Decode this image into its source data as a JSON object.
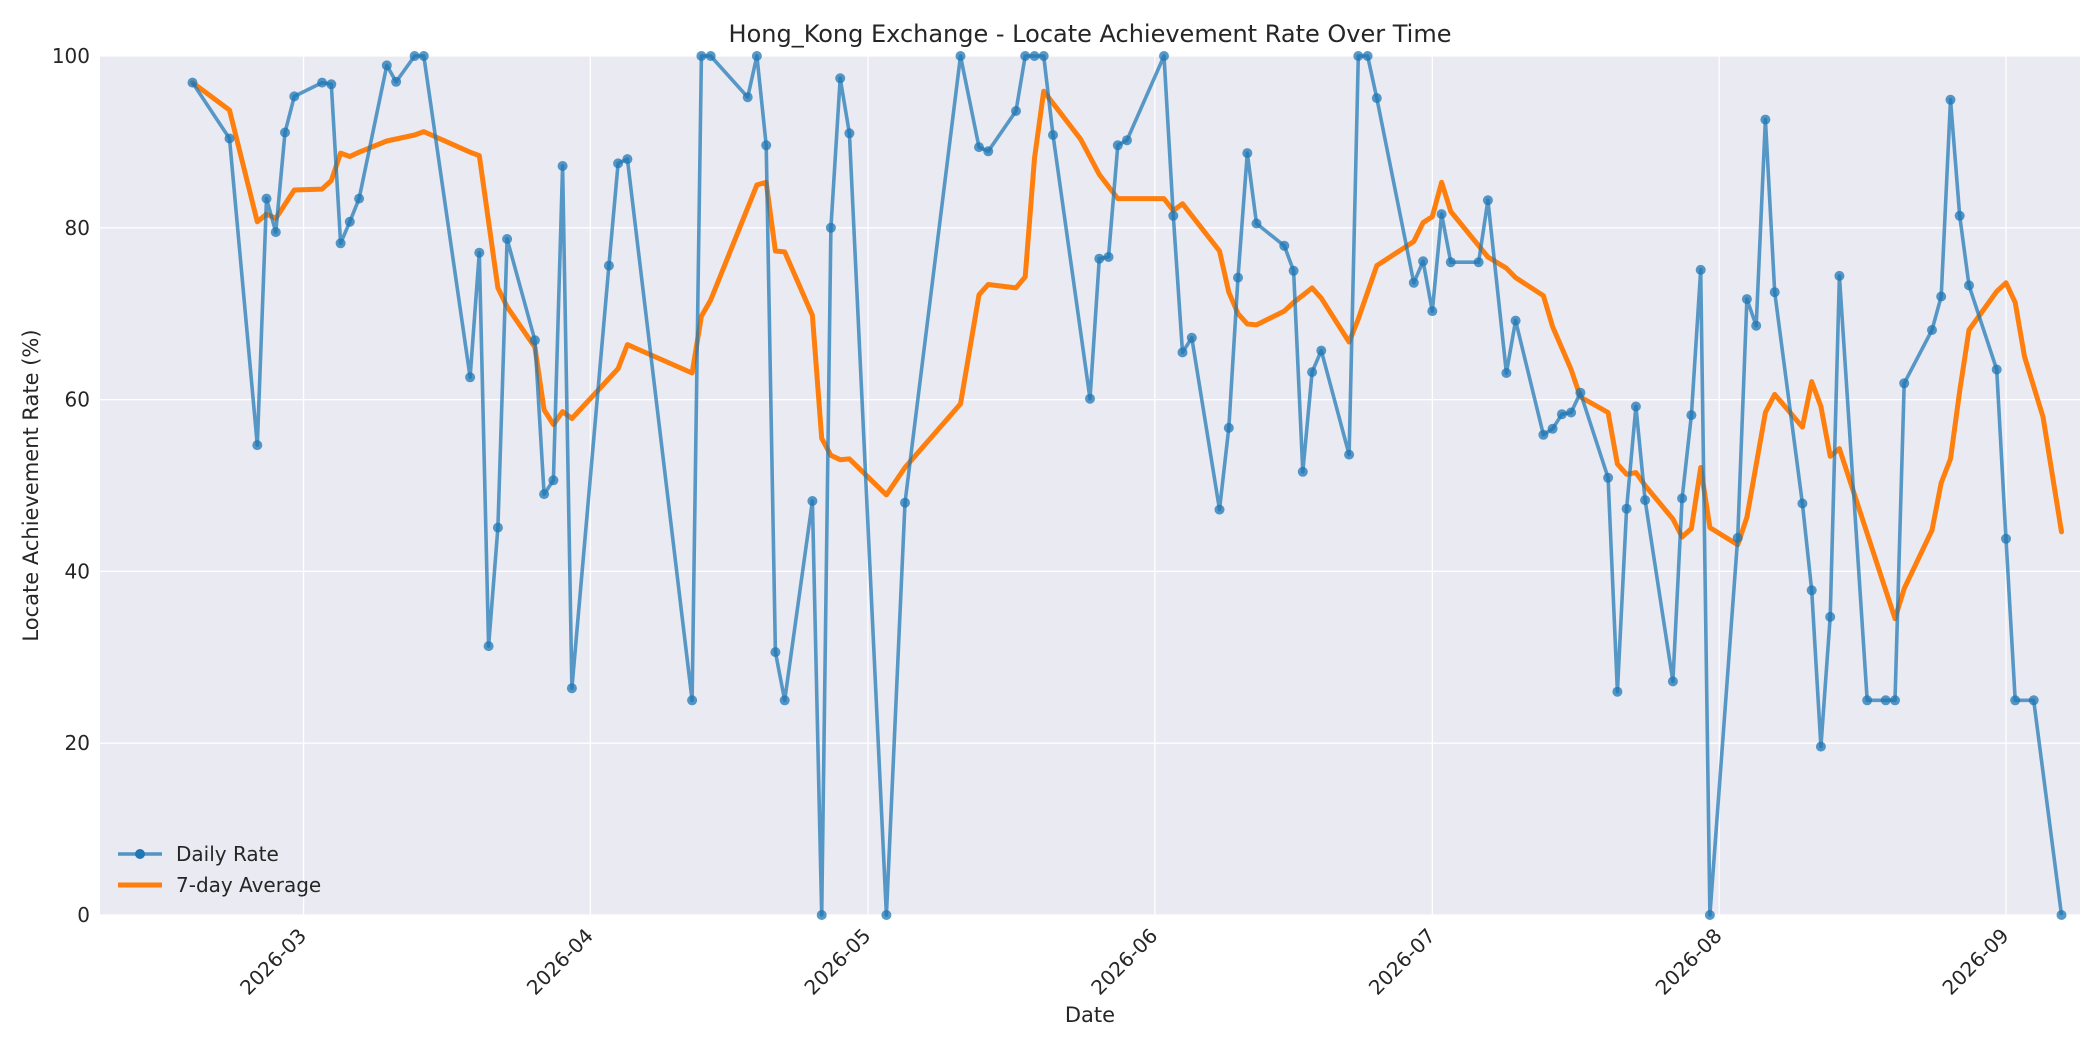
{
  "chart_data": {
    "type": "line",
    "title": "Hong_Kong Exchange - Locate Achievement Rate Over Time",
    "xlabel": "Date",
    "ylabel": "Locate Achievement Rate (%)",
    "ylim": [
      0,
      100
    ],
    "xlim": [
      "2026-02-07",
      "2026-09-09"
    ],
    "x_ticks": [
      "2026-03",
      "2026-04",
      "2026-05",
      "2026-06",
      "2026-07",
      "2026-08",
      "2026-09"
    ],
    "y_ticks": [
      0,
      20,
      40,
      60,
      80,
      100
    ],
    "grid": true,
    "legend_position": "lower-left",
    "colors": {
      "daily": "#1f77b4",
      "avg": "#ff7f0e",
      "plot_bg": "#eaeaf2",
      "grid": "#ffffff"
    },
    "series": [
      {
        "name": "Daily Rate",
        "marker": "circle",
        "points": [
          [
            "2026-02-17",
            96.9
          ],
          [
            "2026-02-21",
            90.4
          ],
          [
            "2026-02-24",
            54.7
          ],
          [
            "2026-02-25",
            83.4
          ],
          [
            "2026-02-26",
            79.5
          ],
          [
            "2026-02-27",
            91.1
          ],
          [
            "2026-02-28",
            95.3
          ],
          [
            "2026-03-03",
            96.9
          ],
          [
            "2026-03-04",
            96.7
          ],
          [
            "2026-03-05",
            78.2
          ],
          [
            "2026-03-06",
            80.7
          ],
          [
            "2026-03-07",
            83.4
          ],
          [
            "2026-03-10",
            98.9
          ],
          [
            "2026-03-11",
            97.0
          ],
          [
            "2026-03-13",
            100.0
          ],
          [
            "2026-03-14",
            100.0
          ],
          [
            "2026-03-19",
            62.6
          ],
          [
            "2026-03-20",
            77.1
          ],
          [
            "2026-03-21",
            31.3
          ],
          [
            "2026-03-22",
            45.1
          ],
          [
            "2026-03-23",
            78.7
          ],
          [
            "2026-03-26",
            66.9
          ],
          [
            "2026-03-27",
            49.0
          ],
          [
            "2026-03-28",
            50.6
          ],
          [
            "2026-03-29",
            87.2
          ],
          [
            "2026-03-30",
            26.4
          ],
          [
            "2026-04-03",
            75.6
          ],
          [
            "2026-04-04",
            87.5
          ],
          [
            "2026-04-05",
            88.0
          ],
          [
            "2026-04-12",
            25.0
          ],
          [
            "2026-04-13",
            100.0
          ],
          [
            "2026-04-14",
            100.0
          ],
          [
            "2026-04-18",
            95.2
          ],
          [
            "2026-04-19",
            100.0
          ],
          [
            "2026-04-20",
            89.6
          ],
          [
            "2026-04-21",
            30.6
          ],
          [
            "2026-04-22",
            25.0
          ],
          [
            "2026-04-25",
            48.2
          ],
          [
            "2026-04-26",
            0.0
          ],
          [
            "2026-04-27",
            80.0
          ],
          [
            "2026-04-28",
            97.4
          ],
          [
            "2026-04-29",
            91.0
          ],
          [
            "2026-05-03",
            0.0
          ],
          [
            "2026-05-05",
            48.0
          ],
          [
            "2026-05-11",
            100.0
          ],
          [
            "2026-05-13",
            89.4
          ],
          [
            "2026-05-14",
            88.9
          ],
          [
            "2026-05-17",
            93.6
          ],
          [
            "2026-05-18",
            100.0
          ],
          [
            "2026-05-19",
            100.0
          ],
          [
            "2026-05-20",
            100.0
          ],
          [
            "2026-05-21",
            90.8
          ],
          [
            "2026-05-25",
            60.1
          ],
          [
            "2026-05-26",
            76.4
          ],
          [
            "2026-05-27",
            76.6
          ],
          [
            "2026-05-28",
            89.6
          ],
          [
            "2026-05-29",
            90.2
          ],
          [
            "2026-06-02",
            100.0
          ],
          [
            "2026-06-03",
            81.4
          ],
          [
            "2026-06-04",
            65.5
          ],
          [
            "2026-06-05",
            67.2
          ],
          [
            "2026-06-08",
            47.2
          ],
          [
            "2026-06-09",
            56.7
          ],
          [
            "2026-06-10",
            74.2
          ],
          [
            "2026-06-11",
            88.7
          ],
          [
            "2026-06-12",
            80.5
          ],
          [
            "2026-06-15",
            77.9
          ],
          [
            "2026-06-16",
            75.0
          ],
          [
            "2026-06-17",
            51.6
          ],
          [
            "2026-06-18",
            63.2
          ],
          [
            "2026-06-19",
            65.7
          ],
          [
            "2026-06-22",
            53.6
          ],
          [
            "2026-06-23",
            100.0
          ],
          [
            "2026-06-24",
            100.0
          ],
          [
            "2026-06-25",
            95.1
          ],
          [
            "2026-06-29",
            73.6
          ],
          [
            "2026-06-30",
            76.1
          ],
          [
            "2026-07-01",
            70.3
          ],
          [
            "2026-07-02",
            81.6
          ],
          [
            "2026-07-03",
            76.0
          ],
          [
            "2026-07-06",
            76.0
          ],
          [
            "2026-07-07",
            83.2
          ],
          [
            "2026-07-09",
            63.1
          ],
          [
            "2026-07-10",
            69.2
          ],
          [
            "2026-07-13",
            55.9
          ],
          [
            "2026-07-14",
            56.6
          ],
          [
            "2026-07-15",
            58.3
          ],
          [
            "2026-07-16",
            58.5
          ],
          [
            "2026-07-17",
            60.8
          ],
          [
            "2026-07-20",
            50.9
          ],
          [
            "2026-07-21",
            26.0
          ],
          [
            "2026-07-22",
            47.3
          ],
          [
            "2026-07-23",
            59.2
          ],
          [
            "2026-07-24",
            48.3
          ],
          [
            "2026-07-27",
            27.2
          ],
          [
            "2026-07-28",
            48.5
          ],
          [
            "2026-07-29",
            58.2
          ],
          [
            "2026-07-30",
            75.1
          ],
          [
            "2026-07-31",
            0.0
          ],
          [
            "2026-08-03",
            43.9
          ],
          [
            "2026-08-04",
            71.7
          ],
          [
            "2026-08-05",
            68.6
          ],
          [
            "2026-08-06",
            92.6
          ],
          [
            "2026-08-07",
            72.5
          ],
          [
            "2026-08-10",
            47.9
          ],
          [
            "2026-08-11",
            37.8
          ],
          [
            "2026-08-12",
            19.6
          ],
          [
            "2026-08-13",
            34.7
          ],
          [
            "2026-08-14",
            74.4
          ],
          [
            "2026-08-17",
            25.0
          ],
          [
            "2026-08-19",
            25.0
          ],
          [
            "2026-08-20",
            25.0
          ],
          [
            "2026-08-21",
            61.9
          ],
          [
            "2026-08-24",
            68.1
          ],
          [
            "2026-08-25",
            72.0
          ],
          [
            "2026-08-26",
            94.9
          ],
          [
            "2026-08-27",
            81.4
          ],
          [
            "2026-08-28",
            73.3
          ],
          [
            "2026-08-31",
            63.5
          ],
          [
            "2026-09-01",
            43.8
          ],
          [
            "2026-09-02",
            25.0
          ],
          [
            "2026-09-04",
            25.0
          ],
          [
            "2026-09-07",
            0.0
          ]
        ]
      },
      {
        "name": "7-day Average",
        "marker": "none",
        "points": [
          [
            "2026-02-17",
            96.9
          ],
          [
            "2026-02-21",
            93.7
          ],
          [
            "2026-02-24",
            80.7
          ],
          [
            "2026-02-25",
            81.6
          ],
          [
            "2026-02-26",
            81.1
          ],
          [
            "2026-02-28",
            84.4
          ],
          [
            "2026-03-03",
            84.5
          ],
          [
            "2026-03-04",
            85.5
          ],
          [
            "2026-03-05",
            88.7
          ],
          [
            "2026-03-06",
            88.3
          ],
          [
            "2026-03-07",
            88.8
          ],
          [
            "2026-03-10",
            90.1
          ],
          [
            "2026-03-13",
            90.8
          ],
          [
            "2026-03-14",
            91.2
          ],
          [
            "2026-03-19",
            88.8
          ],
          [
            "2026-03-20",
            88.4
          ],
          [
            "2026-03-22",
            73.0
          ],
          [
            "2026-03-23",
            70.8
          ],
          [
            "2026-03-26",
            66.1
          ],
          [
            "2026-03-27",
            58.8
          ],
          [
            "2026-03-28",
            57.1
          ],
          [
            "2026-03-29",
            58.6
          ],
          [
            "2026-03-30",
            57.8
          ],
          [
            "2026-04-04",
            63.6
          ],
          [
            "2026-04-05",
            66.4
          ],
          [
            "2026-04-12",
            63.1
          ],
          [
            "2026-04-13",
            69.7
          ],
          [
            "2026-04-14",
            71.6
          ],
          [
            "2026-04-19",
            85.0
          ],
          [
            "2026-04-20",
            85.3
          ],
          [
            "2026-04-21",
            77.3
          ],
          [
            "2026-04-22",
            77.2
          ],
          [
            "2026-04-25",
            69.8
          ],
          [
            "2026-04-26",
            55.5
          ],
          [
            "2026-04-27",
            53.5
          ],
          [
            "2026-04-28",
            53.0
          ],
          [
            "2026-04-29",
            53.1
          ],
          [
            "2026-05-03",
            48.9
          ],
          [
            "2026-05-05",
            52.1
          ],
          [
            "2026-05-11",
            59.5
          ],
          [
            "2026-05-13",
            72.2
          ],
          [
            "2026-05-14",
            73.4
          ],
          [
            "2026-05-17",
            73.0
          ],
          [
            "2026-05-18",
            74.3
          ],
          [
            "2026-05-19",
            88.1
          ],
          [
            "2026-05-20",
            95.9
          ],
          [
            "2026-05-24",
            90.3
          ],
          [
            "2026-05-26",
            86.2
          ],
          [
            "2026-05-28",
            83.4
          ],
          [
            "2026-06-02",
            83.4
          ],
          [
            "2026-06-03",
            82.0
          ],
          [
            "2026-06-04",
            82.8
          ],
          [
            "2026-06-08",
            77.3
          ],
          [
            "2026-06-09",
            72.5
          ],
          [
            "2026-06-10",
            70.0
          ],
          [
            "2026-06-11",
            68.8
          ],
          [
            "2026-06-12",
            68.7
          ],
          [
            "2026-06-15",
            70.3
          ],
          [
            "2026-06-16",
            71.3
          ],
          [
            "2026-06-18",
            73.0
          ],
          [
            "2026-06-19",
            71.8
          ],
          [
            "2026-06-22",
            66.7
          ],
          [
            "2026-06-23",
            69.4
          ],
          [
            "2026-06-25",
            75.6
          ],
          [
            "2026-06-29",
            78.4
          ],
          [
            "2026-06-30",
            80.6
          ],
          [
            "2026-07-01",
            81.3
          ],
          [
            "2026-07-02",
            85.3
          ],
          [
            "2026-07-03",
            81.9
          ],
          [
            "2026-07-07",
            76.6
          ],
          [
            "2026-07-09",
            75.3
          ],
          [
            "2026-07-10",
            74.2
          ],
          [
            "2026-07-13",
            72.1
          ],
          [
            "2026-07-14",
            68.5
          ],
          [
            "2026-07-16",
            63.5
          ],
          [
            "2026-07-17",
            60.3
          ],
          [
            "2026-07-20",
            58.5
          ],
          [
            "2026-07-21",
            52.5
          ],
          [
            "2026-07-22",
            51.3
          ],
          [
            "2026-07-23",
            51.5
          ],
          [
            "2026-07-24",
            50.0
          ],
          [
            "2026-07-27",
            46.1
          ],
          [
            "2026-07-28",
            44.0
          ],
          [
            "2026-07-29",
            45.0
          ],
          [
            "2026-07-30",
            52.1
          ],
          [
            "2026-07-31",
            45.1
          ],
          [
            "2026-08-03",
            43.1
          ],
          [
            "2026-08-04",
            46.3
          ],
          [
            "2026-08-06",
            58.5
          ],
          [
            "2026-08-07",
            60.6
          ],
          [
            "2026-08-10",
            56.8
          ],
          [
            "2026-08-11",
            62.1
          ],
          [
            "2026-08-12",
            59.2
          ],
          [
            "2026-08-13",
            53.4
          ],
          [
            "2026-08-14",
            54.3
          ],
          [
            "2026-08-20",
            34.5
          ],
          [
            "2026-08-21",
            38.0
          ],
          [
            "2026-08-24",
            44.8
          ],
          [
            "2026-08-25",
            50.3
          ],
          [
            "2026-08-26",
            53.1
          ],
          [
            "2026-08-27",
            61.0
          ],
          [
            "2026-08-28",
            68.1
          ],
          [
            "2026-08-31",
            72.6
          ],
          [
            "2026-09-01",
            73.6
          ],
          [
            "2026-09-02",
            71.3
          ],
          [
            "2026-09-03",
            65.0
          ],
          [
            "2026-09-05",
            58.0
          ],
          [
            "2026-09-07",
            44.6
          ]
        ]
      }
    ]
  }
}
